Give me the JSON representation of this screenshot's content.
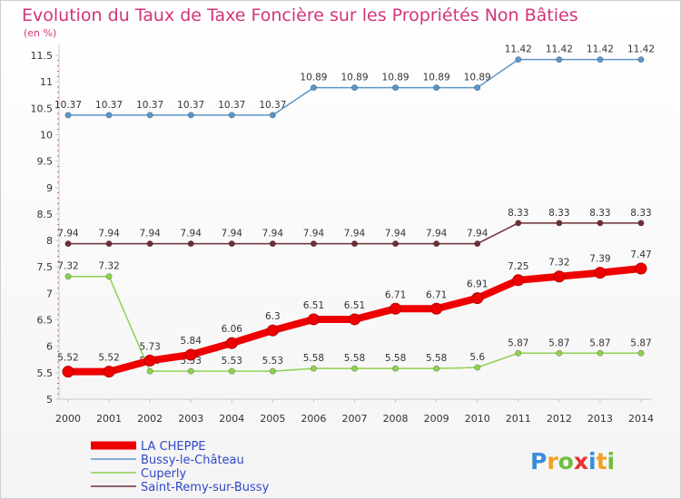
{
  "chart_data": {
    "type": "line",
    "title": "Evolution du Taux de Taxe Foncière sur les Propriétés Non Bâties",
    "subtitle": "(en %)",
    "x": [
      "2000",
      "2001",
      "2002",
      "2003",
      "2004",
      "2005",
      "2006",
      "2007",
      "2008",
      "2009",
      "2010",
      "2011",
      "2012",
      "2013",
      "2014"
    ],
    "y_ticks": [
      "5",
      "5.5",
      "6",
      "6.5",
      "7",
      "7.5",
      "8",
      "8.5",
      "9",
      "9.5",
      "10",
      "10.5",
      "11",
      "11.5"
    ],
    "ylim": [
      5,
      11.5
    ],
    "grid": false,
    "legend_position": "bottom-left",
    "series": [
      {
        "name": "LA CHEPPE",
        "color": "#ee0000",
        "values": [
          5.52,
          5.52,
          5.73,
          5.84,
          6.06,
          6.3,
          6.51,
          6.51,
          6.71,
          6.71,
          6.91,
          7.25,
          7.32,
          7.39,
          7.47
        ],
        "labels": [
          "5.52",
          "5.52",
          "5.73",
          "5.84",
          "6.06",
          "6.3",
          "6.51",
          "6.51",
          "6.71",
          "6.71",
          "6.91",
          "7.25",
          "7.32",
          "7.39",
          "7.47"
        ]
      },
      {
        "name": "Bussy-le-Château",
        "color": "#5b95c8",
        "values": [
          10.37,
          10.37,
          10.37,
          10.37,
          10.37,
          10.37,
          10.89,
          10.89,
          10.89,
          10.89,
          10.89,
          11.42,
          11.42,
          11.42,
          11.42
        ],
        "labels": [
          "10.37",
          "10.37",
          "10.37",
          "10.37",
          "10.37",
          "10.37",
          "10.89",
          "10.89",
          "10.89",
          "10.89",
          "10.89",
          "11.42",
          "11.42",
          "11.42",
          "11.42"
        ]
      },
      {
        "name": "Cuperly",
        "color": "#8fd150",
        "values": [
          7.32,
          7.32,
          5.53,
          5.53,
          5.53,
          5.53,
          5.58,
          5.58,
          5.58,
          5.58,
          5.6,
          5.87,
          5.87,
          5.87,
          5.87
        ],
        "labels": [
          "7.32",
          "7.32",
          "5.53",
          "5.53",
          "5.53",
          "5.53",
          "5.58",
          "5.58",
          "5.58",
          "5.58",
          "5.6",
          "5.87",
          "5.87",
          "5.87",
          "5.87"
        ]
      },
      {
        "name": "Saint-Remy-sur-Bussy",
        "color": "#6e2f38",
        "values": [
          7.94,
          7.94,
          7.94,
          7.94,
          7.94,
          7.94,
          7.94,
          7.94,
          7.94,
          7.94,
          7.94,
          8.33,
          8.33,
          8.33,
          8.33
        ],
        "labels": [
          "7.94",
          "7.94",
          "7.94",
          "7.94",
          "7.94",
          "7.94",
          "7.94",
          "7.94",
          "7.94",
          "7.94",
          "7.94",
          "8.33",
          "8.33",
          "8.33",
          "8.33"
        ]
      }
    ]
  },
  "logo": {
    "text": "Proxiti"
  }
}
